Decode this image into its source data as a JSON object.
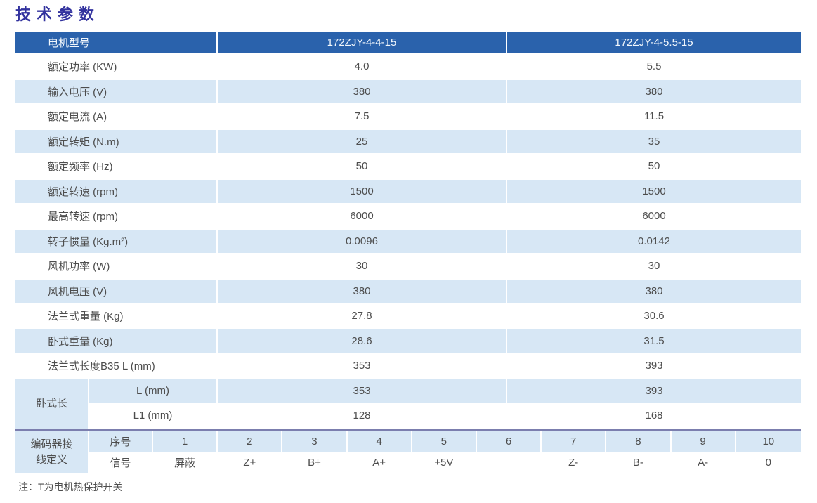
{
  "page": {
    "title": "技术参数",
    "note": "注：T为电机热保护开关"
  },
  "colors": {
    "header_bg": "#2A62AC",
    "row_alt_bg": "#D7E7F5",
    "title_color": "#32329E",
    "divider": "#7B7EAE",
    "header_text": "#F2F7FC",
    "body_text": "#4d4d4d"
  },
  "table": {
    "header": {
      "label": "电机型号",
      "models": [
        "172ZJY-4-4-15",
        "172ZJY-4-5.5-15"
      ]
    },
    "rows": [
      {
        "label": "额定功率 (KW)",
        "v1": "4.0",
        "v2": "5.5"
      },
      {
        "label": "输入电压 (V)",
        "v1": "380",
        "v2": "380"
      },
      {
        "label": "额定电流 (A)",
        "v1": "7.5",
        "v2": "11.5"
      },
      {
        "label": "额定转矩 (N.m)",
        "v1": "25",
        "v2": "35"
      },
      {
        "label": "额定频率 (Hz)",
        "v1": "50",
        "v2": "50"
      },
      {
        "label": "额定转速 (rpm)",
        "v1": "1500",
        "v2": "1500"
      },
      {
        "label": "最高转速 (rpm)",
        "v1": "6000",
        "v2": "6000"
      },
      {
        "label": "转子惯量 (Kg.m²)",
        "v1": "0.0096",
        "v2": "0.0142"
      },
      {
        "label": "风机功率 (W)",
        "v1": "30",
        "v2": "30"
      },
      {
        "label": "风机电压 (V)",
        "v1": "380",
        "v2": "380"
      },
      {
        "label": "法兰式重量 (Kg)",
        "v1": "27.8",
        "v2": "30.6"
      },
      {
        "label": "卧式重量 (Kg)",
        "v1": "28.6",
        "v2": "31.5"
      },
      {
        "label": "法兰式长度B35 L (mm)",
        "v1": "353",
        "v2": "393"
      }
    ],
    "horizontal_group": {
      "label": "卧式长",
      "rows": [
        {
          "label": "L (mm)",
          "v1": "353",
          "v2": "393"
        },
        {
          "label": "L1 (mm)",
          "v1": "128",
          "v2": "168"
        }
      ]
    },
    "encoder_group": {
      "label_lines": [
        "编码器接",
        "线定义"
      ],
      "pin_row_label": "序号",
      "signal_row_label": "信号",
      "pins": [
        "1",
        "2",
        "3",
        "4",
        "5",
        "6",
        "7",
        "8",
        "9",
        "10"
      ],
      "signals": [
        "屏蔽",
        "Z+",
        "B+",
        "A+",
        "+5V",
        "",
        "Z-",
        "B-",
        "A-",
        "0"
      ]
    }
  }
}
